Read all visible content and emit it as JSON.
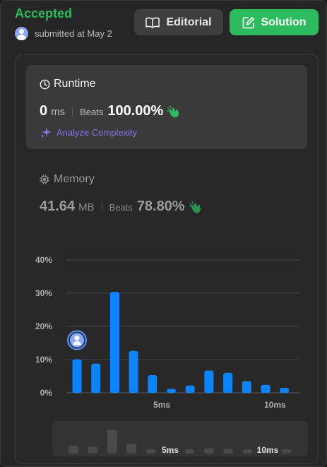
{
  "header": {
    "status": "Accepted",
    "submitter_text": "submitted at May 2"
  },
  "buttons": {
    "editorial": {
      "label": "Editorial",
      "icon": "book-icon"
    },
    "solution": {
      "label": "Solution",
      "icon": "edit-icon"
    }
  },
  "runtime": {
    "title": "Runtime",
    "icon": "clock-icon",
    "value": "0",
    "unit": "ms",
    "beats_label": "Beats",
    "beats_value": "100.00%",
    "beats_icon": "clap-icon",
    "analyze_label": "Analyze Complexity",
    "analyze_icon": "sparkle-icon"
  },
  "memory": {
    "title": "Memory",
    "icon": "chip-icon",
    "value": "41.64",
    "unit": "MB",
    "beats_label": "Beats",
    "beats_value": "78.80%",
    "beats_icon": "clap-icon"
  },
  "colors": {
    "accepted": "#2cbb5d",
    "bar": "#0a84ff",
    "clap": "#2cbb5d",
    "analyze": "#8c74e6",
    "overview_bar": "#4a4a4a"
  },
  "chart_data": {
    "type": "bar",
    "values": [
      10.1,
      8.8,
      30.4,
      12.6,
      5.3,
      1.2,
      2.2,
      6.7,
      6.0,
      3.5,
      2.4,
      1.5
    ],
    "highlight_index": 0,
    "y_ticks": [
      "0%",
      "10%",
      "20%",
      "30%",
      "40%"
    ],
    "ylim": [
      0,
      40
    ],
    "x_ticks": [
      {
        "label": "5ms",
        "position": 4.5
      },
      {
        "label": "10ms",
        "position": 10.5
      }
    ],
    "grid": true,
    "overview": {
      "values": [
        10.1,
        8.8,
        30.4,
        12.6,
        5.3,
        1.2,
        2.2,
        6.7,
        6.0,
        3.5,
        2.4,
        1.5
      ],
      "x_ticks": [
        "5ms",
        "10ms"
      ]
    }
  }
}
